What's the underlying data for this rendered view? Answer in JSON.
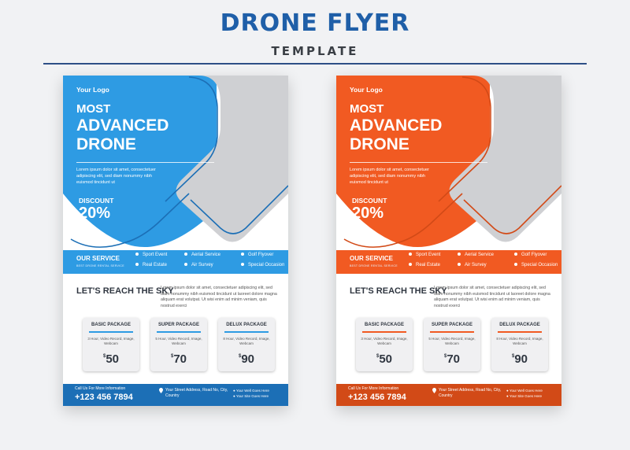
{
  "header": {
    "title": "DRONE FLYER",
    "subtitle": "TEMPLATE"
  },
  "flyers": [
    {
      "accent": "#2e9be3",
      "accent_dark": "#1c6fb6",
      "logo": "Your Logo",
      "headline_small": "MOST",
      "headline_big": "ADVANCED DRONE",
      "intro": "Lorem ipsum dolor sit amet, consectetuer adipiscing elit, sed diam nonummy nibh euismod tincidunt ut",
      "discount_label": "DISCOUNT",
      "discount_value": "20%",
      "service_title": "OUR SERVICE",
      "service_subtitle": "BEST DRONE RENTAL SERVICE",
      "services": [
        "Sport Event",
        "Aerial Service",
        "Golf Flyover",
        "Real Estate",
        "Air Survey",
        "Special Occasion"
      ],
      "reach_title": "LET'S REACH THE SKY",
      "reach_body": "Lorem ipsum dolor sit amet, consectetuer adipiscing elit, sed diam nonummy nibh euismod tincidunt ut laoreet dolore magna aliquam erat volutpat. Ut wisi enim ad minim veniam, quis nostrud exerci",
      "packages": [
        {
          "name": "BASIC PACKAGE",
          "desc": "3 Hour, Video Record, Image, Webcam",
          "currency": "$",
          "price": "50"
        },
        {
          "name": "SUPER PACKAGE",
          "desc": "5 Hour, Video Record, Image, Webcam",
          "currency": "$",
          "price": "70"
        },
        {
          "name": "DELUX PACKAGE",
          "desc": "8 Hour, Video Record, Image, Webcam",
          "currency": "$",
          "price": "90"
        }
      ],
      "footer": {
        "call_label": "Call Us For More Information",
        "phone": "+123 456 7894",
        "address": "Your Street Address, Road No, City, Country",
        "web1": "Your Well Goes Here",
        "web2": "Your Site Goes Here"
      }
    },
    {
      "accent": "#f15a22",
      "accent_dark": "#d24a17",
      "logo": "Your Logo",
      "headline_small": "MOST",
      "headline_big": "ADVANCED DRONE",
      "intro": "Lorem ipsum dolor sit amet, consectetuer adipiscing elit, sed diam nonummy nibh euismod tincidunt ut",
      "discount_label": "DISCOUNT",
      "discount_value": "20%",
      "service_title": "OUR SERVICE",
      "service_subtitle": "BEST DRONE RENTAL SERVICE",
      "services": [
        "Sport Event",
        "Aerial Service",
        "Golf Flyover",
        "Real Estate",
        "Air Survey",
        "Special Occasion"
      ],
      "reach_title": "LET'S REACH THE SKY",
      "reach_body": "Lorem ipsum dolor sit amet, consectetuer adipiscing elit, sed diam nonummy nibh euismod tincidunt ut laoreet dolore magna aliquam erat volutpat. Ut wisi enim ad minim veniam, quis nostrud exerci",
      "packages": [
        {
          "name": "BASIC PACKAGE",
          "desc": "3 Hour, Video Record, Image, Webcam",
          "currency": "$",
          "price": "50"
        },
        {
          "name": "SUPER PACKAGE",
          "desc": "5 Hour, Video Record, Image, Webcam",
          "currency": "$",
          "price": "70"
        },
        {
          "name": "DELUX PACKAGE",
          "desc": "8 Hour, Video Record, Image, Webcam",
          "currency": "$",
          "price": "90"
        }
      ],
      "footer": {
        "call_label": "Call Us For More Information",
        "phone": "+123 456 7894",
        "address": "Your Street Address, Road No, City, Country",
        "web1": "Your Well Goes Here",
        "web2": "Your Site Goes Here"
      }
    }
  ]
}
